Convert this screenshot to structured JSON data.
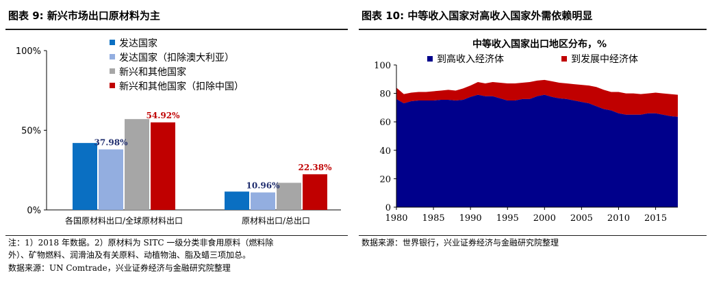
{
  "left_panel": {
    "title": "图表 9:  新兴市场出口原材料为主",
    "note_lines": [
      "注：1）2018 年数据。2）原材料为 SITC 一级分类非食用原料（燃料除",
      "外）、矿物燃料、润滑油及有关原料、动植物油、脂及蜡三项加总。"
    ],
    "source": "数据来源：UN Comtrade，兴业证券经济与金融研究院整理"
  },
  "right_panel": {
    "title": "图表 10:  中等收入国家对高收入国家外需依赖明显",
    "source": "数据来源：世界银行，兴业证券经济与金融研究院整理"
  },
  "colors": {
    "developed": "#0a6fc2",
    "developed_ex_aus": "#93aee0",
    "emerging": "#a6a6a6",
    "emerging_ex_china": "#c00000",
    "high_income": "#00008b",
    "developing": "#c00000",
    "label_blue": "#1f2d6e",
    "label_red": "#c00000"
  },
  "chart_data": [
    {
      "type": "bar",
      "title": "",
      "categories": [
        "各国原材料出口/全球原材料出口",
        "原材料出口/总出口"
      ],
      "series": [
        {
          "name": "发达国家",
          "values": [
            0.42,
            0.115
          ]
        },
        {
          "name": "发达国家（扣除澳大利亚）",
          "values": [
            0.3798,
            0.1096
          ]
        },
        {
          "name": "新兴和其他国家",
          "values": [
            0.57,
            0.17
          ]
        },
        {
          "name": "新兴和其他国家（扣除中国）",
          "values": [
            0.5492,
            0.2238
          ]
        }
      ],
      "data_labels": [
        {
          "series": 1,
          "category": 0,
          "text": "37.98%"
        },
        {
          "series": 3,
          "category": 0,
          "text": "54.92%"
        },
        {
          "series": 1,
          "category": 1,
          "text": "10.96%"
        },
        {
          "series": 3,
          "category": 1,
          "text": "22.38%"
        }
      ],
      "yticks": [
        "0%",
        "50%",
        "100%"
      ],
      "ylim": [
        0,
        1
      ],
      "legend_position": "top-right"
    },
    {
      "type": "area",
      "title": "中等收入国家出口地区分布，%",
      "x": [
        1980,
        1981,
        1982,
        1983,
        1984,
        1985,
        1986,
        1987,
        1988,
        1989,
        1990,
        1991,
        1992,
        1993,
        1994,
        1995,
        1996,
        1997,
        1998,
        1999,
        2000,
        2001,
        2002,
        2003,
        2004,
        2005,
        2006,
        2007,
        2008,
        2009,
        2010,
        2011,
        2012,
        2013,
        2014,
        2015,
        2016,
        2017,
        2018
      ],
      "series": [
        {
          "name": "到高收入经济体",
          "values": [
            76,
            73,
            74.5,
            75,
            75,
            75,
            75.5,
            75.5,
            75,
            75.5,
            77.5,
            79,
            78,
            78,
            76.5,
            75,
            75,
            76,
            76,
            78,
            79,
            77.5,
            76.5,
            76,
            75,
            74,
            73,
            71,
            69,
            68,
            66,
            65,
            65,
            65,
            66,
            66,
            65,
            64,
            63.5
          ]
        },
        {
          "name": "到发展中经济体",
          "values": [
            8,
            6.5,
            6,
            6,
            6,
            6.5,
            6.5,
            7,
            7,
            8,
            8,
            9,
            9,
            10,
            11,
            12,
            12,
            11.5,
            12,
            11,
            10.5,
            11,
            11,
            11,
            11.5,
            12,
            12.5,
            13.5,
            13.5,
            13,
            15,
            15,
            15,
            14.5,
            14,
            14.5,
            15,
            15.5,
            15.5
          ]
        }
      ],
      "xticks": [
        1980,
        1985,
        1990,
        1995,
        2000,
        2005,
        2010,
        2015
      ],
      "yticks": [
        0,
        20,
        40,
        60,
        80,
        100
      ],
      "ylim": [
        0,
        100
      ],
      "stacked": true,
      "legend_position": "top"
    }
  ]
}
